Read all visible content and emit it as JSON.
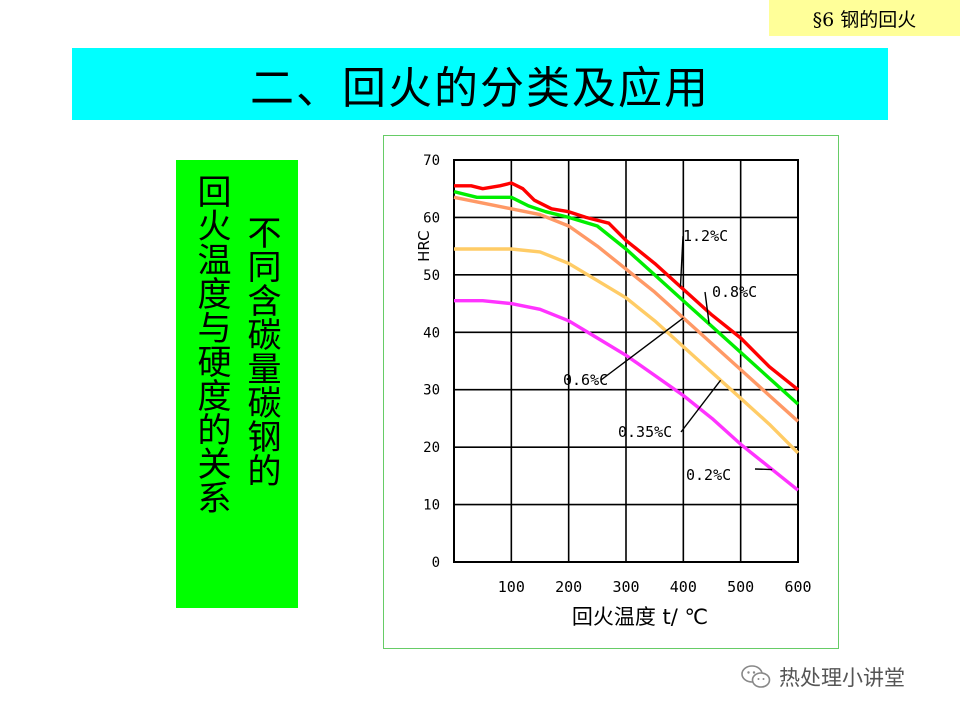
{
  "section_tag": "§6  钢的回火",
  "title": "二、回火的分类及应用",
  "side_label": {
    "col1": "不同含碳量碳钢的",
    "col2": "回火温度与硬度的关系"
  },
  "watermark": {
    "text": "热处理小讲堂",
    "icon": "wechat-icon"
  },
  "colors": {
    "tag_bg": "#ffff99",
    "title_bg": "#00ffff",
    "side_bg": "#00ff00",
    "c12": "#ff0000",
    "c08": "#00ee00",
    "c06": "#ff9966",
    "c035": "#ffcc66",
    "c02": "#ff33ff"
  },
  "chart_data": {
    "type": "line",
    "xlabel": "回火温度  t/ ℃",
    "ylabel": "HRC",
    "xlim": [
      0,
      600
    ],
    "ylim": [
      0,
      70
    ],
    "x_ticks": [
      100,
      200,
      300,
      400,
      500,
      600
    ],
    "y_ticks": [
      0,
      10,
      20,
      30,
      40,
      50,
      60,
      70
    ],
    "grid": true,
    "series": [
      {
        "name": "1.2%C",
        "color": "#ff0000",
        "points": [
          [
            0,
            65.5
          ],
          [
            30,
            65.5
          ],
          [
            50,
            65
          ],
          [
            80,
            65.5
          ],
          [
            100,
            66
          ],
          [
            120,
            65
          ],
          [
            140,
            63
          ],
          [
            170,
            61.5
          ],
          [
            200,
            61
          ],
          [
            230,
            60
          ],
          [
            270,
            59
          ],
          [
            300,
            56
          ],
          [
            350,
            52
          ],
          [
            400,
            47.5
          ],
          [
            450,
            43
          ],
          [
            500,
            39
          ],
          [
            550,
            34
          ],
          [
            600,
            30
          ]
        ]
      },
      {
        "name": "0.8%C",
        "color": "#00ee00",
        "points": [
          [
            0,
            64.5
          ],
          [
            40,
            63.5
          ],
          [
            80,
            63.5
          ],
          [
            100,
            63.5
          ],
          [
            130,
            62
          ],
          [
            160,
            61
          ],
          [
            200,
            60
          ],
          [
            250,
            58.5
          ],
          [
            300,
            54.5
          ],
          [
            350,
            50
          ],
          [
            400,
            45.5
          ],
          [
            450,
            41
          ],
          [
            500,
            36.5
          ],
          [
            550,
            32
          ],
          [
            600,
            27.5
          ]
        ]
      },
      {
        "name": "0.6%C",
        "color": "#ff9966",
        "points": [
          [
            0,
            63.5
          ],
          [
            50,
            62.5
          ],
          [
            100,
            61.5
          ],
          [
            150,
            60.5
          ],
          [
            200,
            58.5
          ],
          [
            250,
            55
          ],
          [
            300,
            51
          ],
          [
            350,
            47
          ],
          [
            400,
            42.5
          ],
          [
            450,
            38
          ],
          [
            500,
            33.5
          ],
          [
            550,
            29
          ],
          [
            600,
            24.5
          ]
        ]
      },
      {
        "name": "0.35%C",
        "color": "#ffcc66",
        "points": [
          [
            0,
            54.5
          ],
          [
            50,
            54.5
          ],
          [
            100,
            54.5
          ],
          [
            150,
            54
          ],
          [
            200,
            52
          ],
          [
            250,
            49
          ],
          [
            300,
            46
          ],
          [
            350,
            42
          ],
          [
            400,
            37.5
          ],
          [
            450,
            33
          ],
          [
            500,
            28.5
          ],
          [
            550,
            24
          ],
          [
            600,
            19
          ]
        ]
      },
      {
        "name": "0.2%C",
        "color": "#ff33ff",
        "points": [
          [
            0,
            45.5
          ],
          [
            50,
            45.5
          ],
          [
            100,
            45
          ],
          [
            150,
            44
          ],
          [
            200,
            42
          ],
          [
            250,
            39
          ],
          [
            300,
            36
          ],
          [
            350,
            32.5
          ],
          [
            400,
            29
          ],
          [
            450,
            25
          ],
          [
            500,
            20.5
          ],
          [
            550,
            16.5
          ],
          [
            600,
            12.5
          ]
        ]
      }
    ],
    "annotations": [
      {
        "text": "1.2%C",
        "points_to_series": "1.2%C",
        "at_x": 395
      },
      {
        "text": "0.8%C",
        "points_to_series": "0.8%C",
        "at_x": 445
      },
      {
        "text": "0.6%C",
        "points_to_series": "0.6%C",
        "at_x": 400
      },
      {
        "text": "0.35%C",
        "points_to_series": "0.35%C",
        "at_x": 465
      },
      {
        "text": "0.2%C",
        "points_to_series": "0.2%C",
        "at_x": 555
      }
    ]
  }
}
